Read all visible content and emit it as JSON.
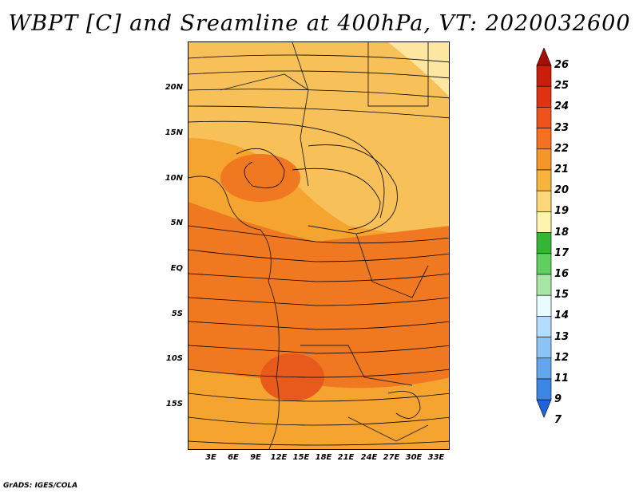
{
  "title": "WBPT [C] and Sreamline at 400hPa, VT: 2020032600",
  "credit": "GrADS: IGES/COLA",
  "y_axis_labels": [
    "20N",
    "15N",
    "10N",
    "5N",
    "EQ",
    "5S",
    "10S",
    "15S"
  ],
  "x_axis_labels": [
    "3E",
    "6E",
    "9E",
    "12E",
    "15E",
    "18E",
    "21E",
    "24E",
    "27E",
    "30E",
    "33E"
  ],
  "colorbar": {
    "labels": [
      "26",
      "25",
      "24",
      "23",
      "22",
      "21",
      "20",
      "19",
      "18",
      "17",
      "16",
      "15",
      "14",
      "13",
      "12",
      "11",
      "9",
      "7"
    ],
    "colors": [
      "#a50f00",
      "#c81e0a",
      "#e03212",
      "#f0521e",
      "#f57020",
      "#f59628",
      "#f7b43c",
      "#fbd67a",
      "#fff3b0",
      "#36b436",
      "#5fcf5f",
      "#a8e6a8",
      "#e8fbff",
      "#b4dcff",
      "#8cc3f5",
      "#64a5ee",
      "#3d86e6",
      "#1f64dc"
    ]
  },
  "map_colors": {
    "base": "#f5a430",
    "warm": "#f07820",
    "hot": "#e85a1c",
    "cool": "#f8c058",
    "pale": "#fde6a0"
  }
}
